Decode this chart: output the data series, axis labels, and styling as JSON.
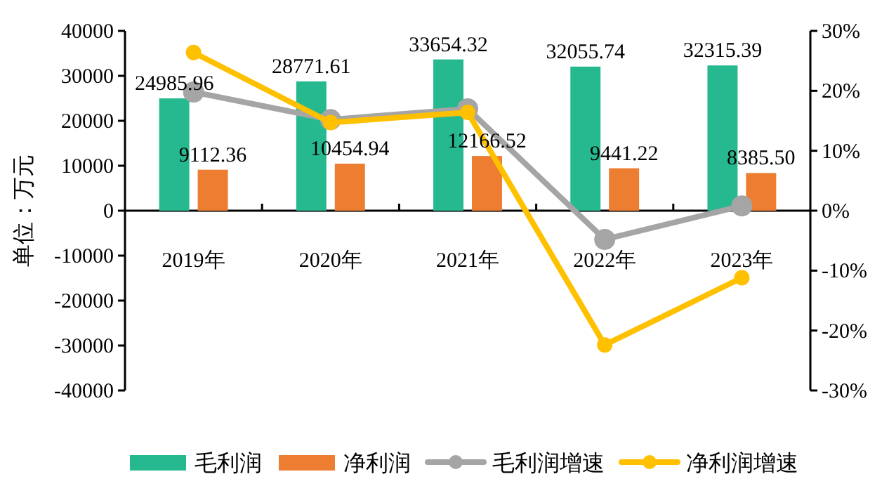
{
  "chart_data": {
    "type": "bar",
    "ylabel": "单位：万元",
    "categories": [
      "2019年",
      "2020年",
      "2021年",
      "2022年",
      "2023年"
    ],
    "series": [
      {
        "name": "毛利润",
        "color": "#26b88f",
        "values": [
          24985.96,
          28771.61,
          33654.32,
          32055.74,
          32315.39
        ],
        "value_labels": [
          "24985.96",
          "28771.61",
          "33654.32",
          "32055.74",
          "32315.39"
        ]
      },
      {
        "name": "净利润",
        "color": "#ed7d31",
        "values": [
          9112.36,
          10454.94,
          12166.52,
          9441.22,
          8385.5
        ],
        "value_labels": [
          "9112.36",
          "10454.94",
          "12166.52",
          "9441.22",
          "8385.50"
        ]
      },
      {
        "name": "毛利润增速",
        "type": "line",
        "axis": "y2",
        "color": "#a5a5a5",
        "marker": "circle",
        "values": [
          19.8,
          15.2,
          17.0,
          -4.8,
          0.8
        ]
      },
      {
        "name": "净利润增速",
        "type": "line",
        "axis": "y2",
        "color": "#ffc000",
        "marker": "circle",
        "values": [
          26.4,
          14.7,
          16.4,
          -22.4,
          -11.2
        ]
      }
    ],
    "ylim": [
      -40000,
      40000
    ],
    "yticks": [
      -40000,
      -30000,
      -20000,
      -10000,
      0,
      10000,
      20000,
      30000,
      40000
    ],
    "y2lim": [
      -30,
      30
    ],
    "y2ticks": [
      {
        "value": -30,
        "label": "-30%"
      },
      {
        "value": -20,
        "label": "-20%"
      },
      {
        "value": -10,
        "label": "-10%"
      },
      {
        "value": 0,
        "label": "0%"
      },
      {
        "value": 10,
        "label": "10%"
      },
      {
        "value": 20,
        "label": "20%"
      },
      {
        "value": 30,
        "label": "30%"
      }
    ],
    "grid": false,
    "legend": "bottom"
  }
}
